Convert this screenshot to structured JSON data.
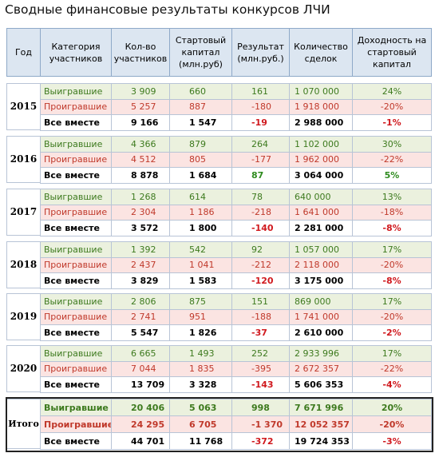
{
  "title": "Сводные финансовые результаты конкурсов ЛЧИ",
  "header": [
    "Год",
    "Категория участников",
    "Кол-во участников",
    "Стартовый капитал (млн.руб)",
    "Результат (млн.руб.)",
    "Количество сделок",
    "Доходность на стартовый капитал"
  ],
  "blocks": [
    {
      "year": "2015",
      "rows": [
        [
          "Выигравшие",
          "3 909",
          "660",
          "161",
          "1 070 000",
          "24%"
        ],
        [
          "Проигравшие",
          "5 257",
          "887",
          "-180",
          "1 918 000",
          "-20%"
        ],
        [
          "Все вместе",
          "9 166",
          "1 547",
          "-19",
          "2 988 000",
          "-1%"
        ]
      ]
    },
    {
      "year": "2016",
      "rows": [
        [
          "Выигравшие",
          "4 366",
          "879",
          "264",
          "1 102 000",
          "30%"
        ],
        [
          "Проигравшие",
          "4 512",
          "805",
          "-177",
          "1 962 000",
          "-22%"
        ],
        [
          "Все вместе",
          "8 878",
          "1 684",
          "87",
          "3 064 000",
          "5%"
        ]
      ]
    },
    {
      "year": "2017",
      "rows": [
        [
          "Выигравшие",
          "1 268",
          "614",
          "78",
          "640 000",
          "13%"
        ],
        [
          "Проигравшие",
          "2 304",
          "1 186",
          "-218",
          "1 641 000",
          "-18%"
        ],
        [
          "Все вместе",
          "3 572",
          "1 800",
          "-140",
          "2 281 000",
          "-8%"
        ]
      ]
    },
    {
      "year": "2018",
      "rows": [
        [
          "Выигравшие",
          "1 392",
          "542",
          "92",
          "1 057 000",
          "17%"
        ],
        [
          "Проигравшие",
          "2 437",
          "1 041",
          "-212",
          "2 118 000",
          "-20%"
        ],
        [
          "Все вместе",
          "3 829",
          "1 583",
          "-120",
          "3 175 000",
          "-8%"
        ]
      ]
    },
    {
      "year": "2019",
      "rows": [
        [
          "Выигравшие",
          "2 806",
          "875",
          "151",
          "869 000",
          "17%"
        ],
        [
          "Проигравшие",
          "2 741",
          "951",
          "-188",
          "1 741 000",
          "-20%"
        ],
        [
          "Все вместе",
          "5 547",
          "1 826",
          "-37",
          "2 610 000",
          "-2%"
        ]
      ]
    },
    {
      "year": "2020",
      "rows": [
        [
          "Выигравшие",
          "6 665",
          "1 493",
          "252",
          "2 933 996",
          "17%"
        ],
        [
          "Проигравшие",
          "7 044",
          "1 835",
          "-395",
          "2 672 357",
          "-22%"
        ],
        [
          "Все вместе",
          "13 709",
          "3 328",
          "-143",
          "5 606 353",
          "-4%"
        ]
      ]
    }
  ],
  "total": {
    "label": "Итого",
    "rows": [
      [
        "Выигравшие",
        "20 406",
        "5 063",
        "998",
        "7 671 996",
        "20%"
      ],
      [
        "Проигравшие",
        "24 295",
        "6 705",
        "-1 370",
        "12 052 357",
        "-20%"
      ],
      [
        "Все вместе",
        "44 701",
        "11 768",
        "-372",
        "19 724 353",
        "-3%"
      ]
    ]
  }
}
